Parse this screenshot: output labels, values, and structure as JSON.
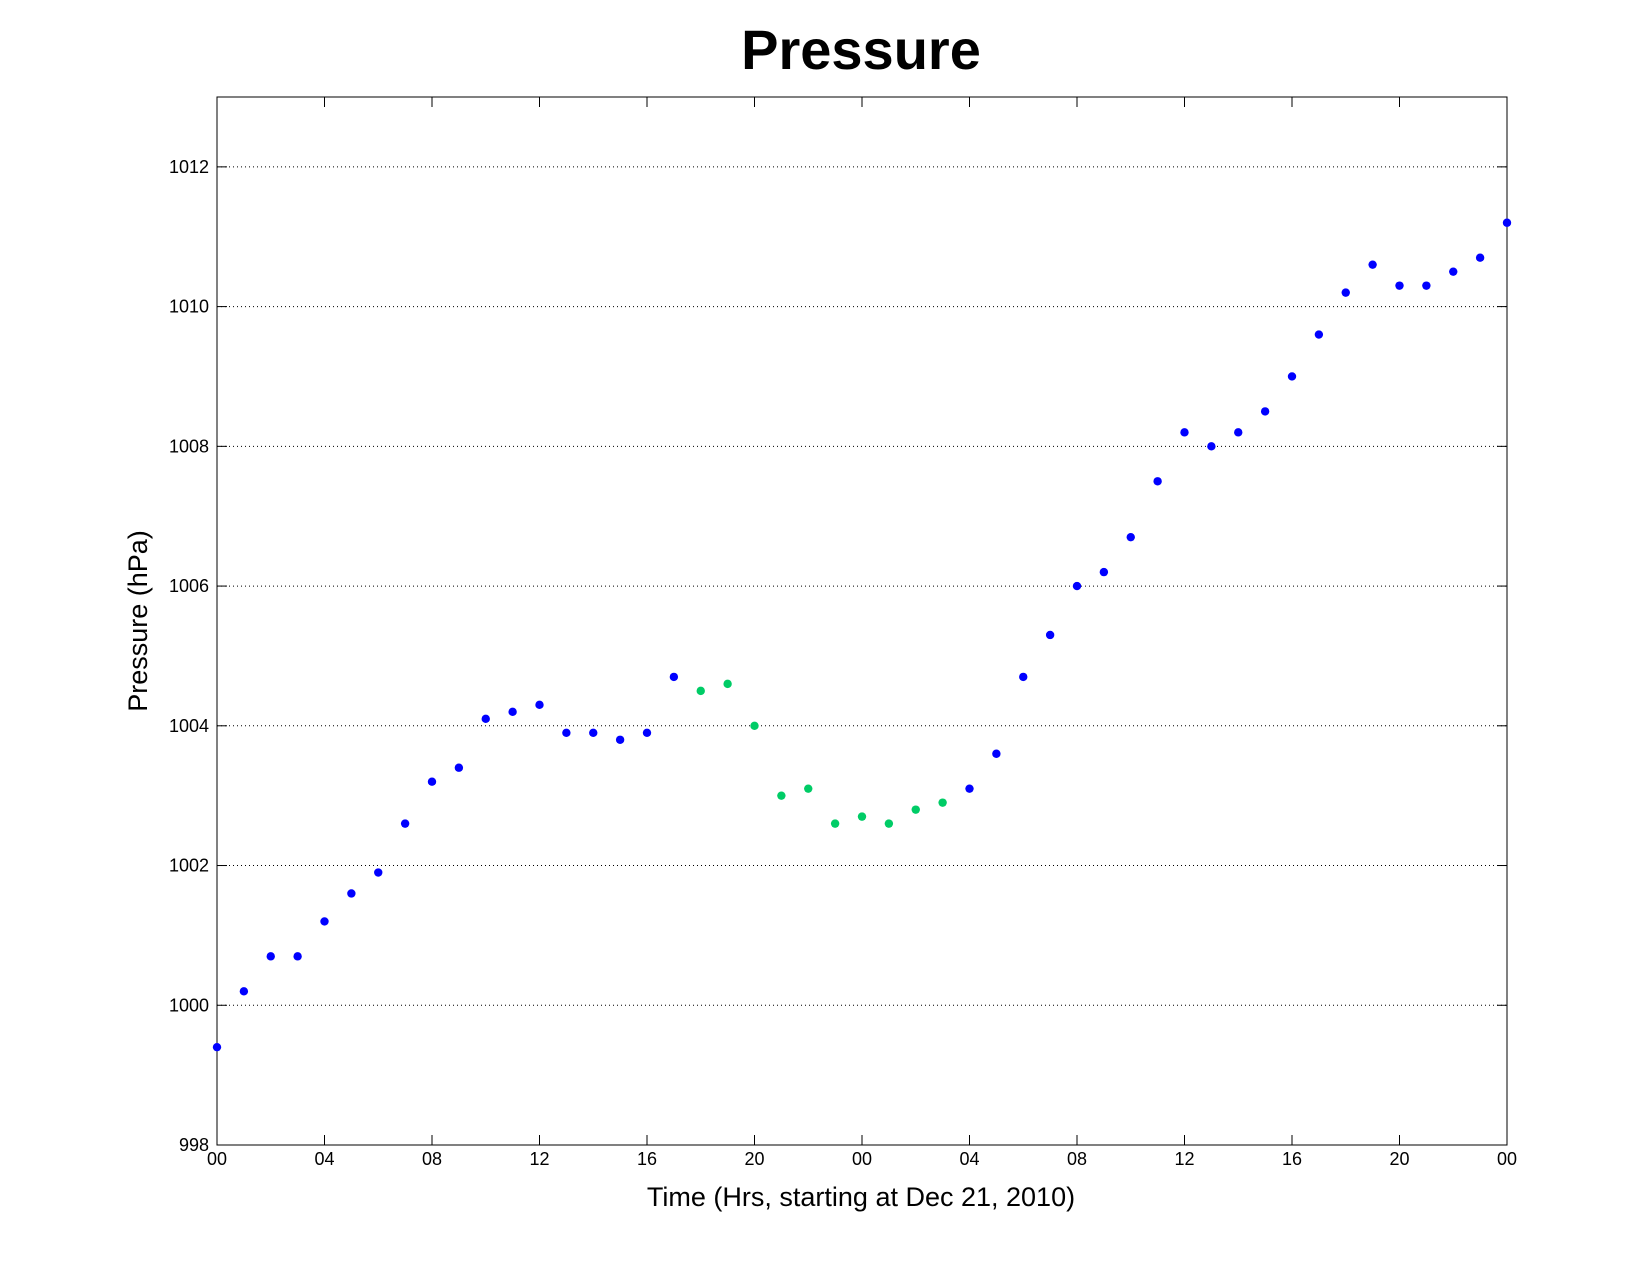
{
  "chart_data": {
    "type": "scatter",
    "title": "Pressure",
    "xlabel": "Time (Hrs, starting at Dec 21, 2010)",
    "ylabel": "Pressure (hPa)",
    "xlim": [
      0,
      48
    ],
    "ylim": [
      998,
      1013
    ],
    "grid": "horizontal dotted",
    "x_ticks": [
      {
        "x": 0,
        "label": "00"
      },
      {
        "x": 4,
        "label": "04"
      },
      {
        "x": 8,
        "label": "08"
      },
      {
        "x": 12,
        "label": "12"
      },
      {
        "x": 16,
        "label": "16"
      },
      {
        "x": 20,
        "label": "20"
      },
      {
        "x": 24,
        "label": "00"
      },
      {
        "x": 28,
        "label": "04"
      },
      {
        "x": 32,
        "label": "08"
      },
      {
        "x": 36,
        "label": "12"
      },
      {
        "x": 40,
        "label": "16"
      },
      {
        "x": 44,
        "label": "20"
      },
      {
        "x": 48,
        "label": "00"
      }
    ],
    "y_ticks": [
      998,
      1000,
      1002,
      1004,
      1006,
      1008,
      1010,
      1012
    ],
    "series": [
      {
        "color": "#0000ff",
        "points": [
          [
            0,
            999.4
          ],
          [
            1,
            1000.2
          ],
          [
            2,
            1000.7
          ],
          [
            3,
            1000.7
          ],
          [
            4,
            1001.2
          ],
          [
            5,
            1001.6
          ],
          [
            6,
            1001.9
          ],
          [
            7,
            1002.6
          ],
          [
            8,
            1003.2
          ],
          [
            9,
            1003.4
          ],
          [
            10,
            1004.1
          ],
          [
            11,
            1004.2
          ],
          [
            12,
            1004.3
          ],
          [
            13,
            1003.9
          ],
          [
            14,
            1003.9
          ],
          [
            15,
            1003.8
          ],
          [
            16,
            1003.9
          ],
          [
            17,
            1004.7
          ],
          [
            28,
            1003.1
          ],
          [
            29,
            1003.6
          ],
          [
            30,
            1004.7
          ],
          [
            31,
            1005.3
          ],
          [
            32,
            1006.0
          ],
          [
            33,
            1006.2
          ],
          [
            34,
            1006.7
          ],
          [
            35,
            1007.5
          ],
          [
            36,
            1008.2
          ],
          [
            37,
            1008.0
          ],
          [
            38,
            1008.2
          ],
          [
            39,
            1008.5
          ],
          [
            40,
            1009.0
          ],
          [
            41,
            1009.6
          ],
          [
            42,
            1010.2
          ],
          [
            43,
            1010.6
          ],
          [
            44,
            1010.3
          ],
          [
            45,
            1010.3
          ],
          [
            46,
            1010.5
          ],
          [
            47,
            1010.7
          ],
          [
            48,
            1011.2
          ]
        ]
      },
      {
        "color": "#00cc66",
        "points": [
          [
            18,
            1004.5
          ],
          [
            19,
            1004.6
          ],
          [
            20,
            1004.0
          ],
          [
            21,
            1003.0
          ],
          [
            22,
            1003.1
          ],
          [
            23,
            1002.6
          ],
          [
            24,
            1002.7
          ],
          [
            25,
            1002.6
          ],
          [
            26,
            1002.8
          ],
          [
            27,
            1002.9
          ]
        ]
      }
    ]
  }
}
